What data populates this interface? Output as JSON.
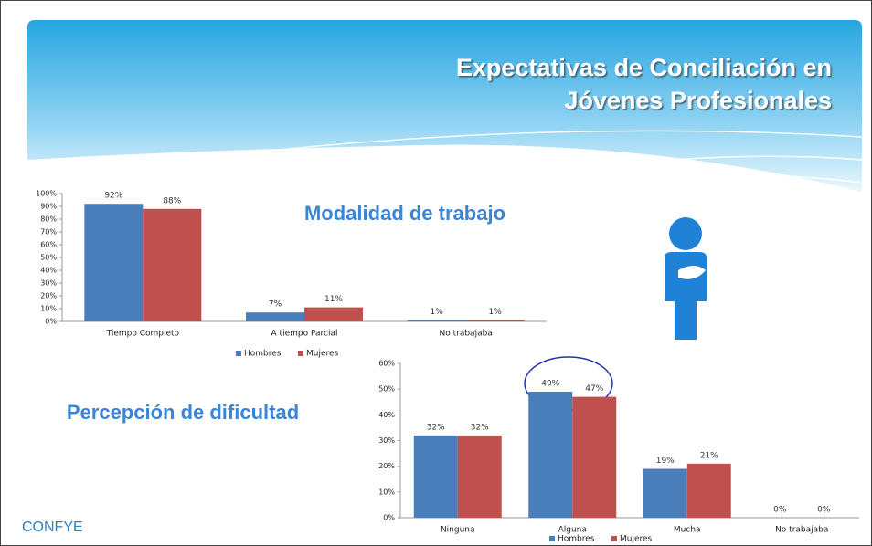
{
  "slide_title": [
    "Expectativas de Conciliación en",
    "Jóvenes Profesionales"
  ],
  "footer": "CONFYE",
  "chart_data": [
    {
      "type": "bar",
      "title": "Modalidad de trabajo",
      "categories": [
        "Tiempo Completo",
        "A tiempo Parcial",
        "No trabajaba"
      ],
      "series": [
        {
          "name": "Hombres",
          "color": "#4a7ebb",
          "values": [
            92,
            7,
            1
          ],
          "value_labels": [
            "92%",
            "7%",
            "1%"
          ]
        },
        {
          "name": "Mujeres",
          "color": "#c0504d",
          "values": [
            88,
            11,
            1
          ],
          "value_labels": [
            "88%",
            "11%",
            "1%"
          ]
        }
      ],
      "ylim": [
        0,
        100
      ],
      "yticks": [
        {
          "value": 0,
          "label": "0%"
        },
        {
          "value": 10,
          "label": "10%"
        },
        {
          "value": 20,
          "label": "20%"
        },
        {
          "value": 30,
          "label": "30%"
        },
        {
          "value": 40,
          "label": "40%"
        },
        {
          "value": 50,
          "label": "50%"
        },
        {
          "value": 60,
          "label": "60%"
        },
        {
          "value": 70,
          "label": "70%"
        },
        {
          "value": 80,
          "label": "80%"
        },
        {
          "value": 90,
          "label": "90%"
        },
        {
          "value": 100,
          "label": "100%"
        }
      ],
      "legend": "bottom"
    },
    {
      "type": "bar",
      "title": "Percepción de dificultad",
      "categories": [
        "Ninguna",
        "Alguna",
        "Mucha",
        "No trabajaba"
      ],
      "series": [
        {
          "name": "Hombres",
          "color": "#4a7ebb",
          "values": [
            32,
            49,
            19,
            0
          ],
          "value_labels": [
            "32%",
            "49%",
            "19%",
            "0%"
          ]
        },
        {
          "name": "Mujeres",
          "color": "#c0504d",
          "values": [
            32,
            47,
            21,
            0
          ],
          "value_labels": [
            "32%",
            "47%",
            "21%",
            "0%"
          ]
        }
      ],
      "ylim": [
        0,
        60
      ],
      "yticks": [
        {
          "value": 0,
          "label": "0%"
        },
        {
          "value": 10,
          "label": "10%"
        },
        {
          "value": 20,
          "label": "20%"
        },
        {
          "value": 30,
          "label": "30%"
        },
        {
          "value": 40,
          "label": "40%"
        },
        {
          "value": 50,
          "label": "50%"
        },
        {
          "value": 60,
          "label": "60%"
        }
      ],
      "legend": "bottom"
    }
  ]
}
